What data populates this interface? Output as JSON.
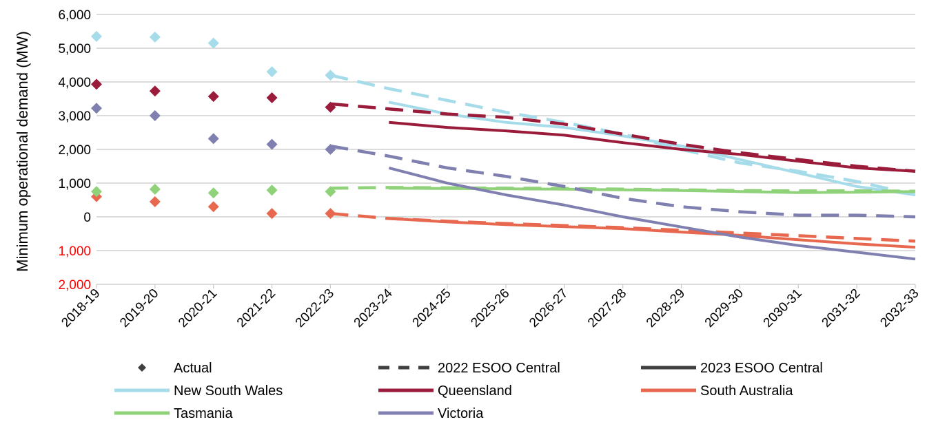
{
  "chart_data": {
    "type": "line",
    "ylabel": "Minimum operational demand (MW)",
    "ylim": [
      -2000,
      6000
    ],
    "y_ticks": [
      {
        "value": 6000,
        "label": "6,000",
        "color": "#000000"
      },
      {
        "value": 5000,
        "label": "5,000",
        "color": "#000000"
      },
      {
        "value": 4000,
        "label": "4,000",
        "color": "#000000"
      },
      {
        "value": 3000,
        "label": "3,000",
        "color": "#000000"
      },
      {
        "value": 2000,
        "label": "2,000",
        "color": "#000000"
      },
      {
        "value": 1000,
        "label": "1,000",
        "color": "#000000"
      },
      {
        "value": 0,
        "label": "0",
        "color": "#000000"
      },
      {
        "value": -1000,
        "label": "1,000",
        "color": "#ff0000"
      },
      {
        "value": -2000,
        "label": "2,000",
        "color": "#ff0000"
      }
    ],
    "categories": [
      "2018-19",
      "2019-20",
      "2020-21",
      "2021-22",
      "2022-23",
      "2023-24",
      "2024-25",
      "2025-26",
      "2026-27",
      "2027-28",
      "2028-29",
      "2029-30",
      "2030-31",
      "2031-32",
      "2032-33"
    ],
    "grid": true,
    "legend_position": "bottom",
    "legend": [
      {
        "label": "Actual",
        "style": "marker"
      },
      {
        "label": "2022 ESOO Central",
        "style": "dashed"
      },
      {
        "label": "2023 ESOO Central",
        "style": "solid"
      },
      {
        "label": "New South Wales",
        "style": "solid",
        "color": "#a6dcea"
      },
      {
        "label": "Queensland",
        "style": "solid",
        "color": "#9b1b3a"
      },
      {
        "label": "South Australia",
        "style": "solid",
        "color": "#e8684f"
      },
      {
        "label": "Tasmania",
        "style": "solid",
        "color": "#8fd27a"
      },
      {
        "label": "Victoria",
        "style": "solid",
        "color": "#7f7fb0"
      }
    ],
    "series": [
      {
        "name": "New South Wales",
        "color": "#a6dcea",
        "actual": [
          5350,
          5330,
          5150,
          4300,
          4200
        ],
        "esoo_2022": [
          null,
          null,
          null,
          null,
          4200,
          3800,
          3450,
          3100,
          2800,
          2450,
          2000,
          1600,
          1350,
          1050,
          650
        ],
        "esoo_2023": [
          null,
          null,
          null,
          null,
          null,
          3400,
          3050,
          2800,
          2650,
          2400,
          2100,
          1700,
          1300,
          900,
          650
        ]
      },
      {
        "name": "Queensland",
        "color": "#9b1b3a",
        "actual": [
          3930,
          3730,
          3570,
          3530,
          3250
        ],
        "esoo_2022": [
          null,
          null,
          null,
          null,
          3350,
          3200,
          3050,
          2950,
          2750,
          2450,
          2150,
          1900,
          1700,
          1500,
          1350
        ],
        "esoo_2023": [
          null,
          null,
          null,
          null,
          null,
          2800,
          2650,
          2550,
          2420,
          2200,
          2000,
          1850,
          1650,
          1450,
          1350
        ]
      },
      {
        "name": "South Australia",
        "color": "#e8684f",
        "actual": [
          600,
          450,
          300,
          100,
          100
        ],
        "esoo_2022": [
          null,
          null,
          null,
          null,
          100,
          -50,
          -130,
          -200,
          -260,
          -320,
          -400,
          -480,
          -560,
          -640,
          -720
        ],
        "esoo_2023": [
          null,
          null,
          null,
          null,
          null,
          -50,
          -150,
          -230,
          -290,
          -350,
          -450,
          -550,
          -680,
          -800,
          -900
        ]
      },
      {
        "name": "Tasmania",
        "color": "#8fd27a",
        "actual": [
          750,
          820,
          710,
          790,
          750
        ],
        "esoo_2022": [
          null,
          null,
          null,
          null,
          850,
          870,
          860,
          850,
          840,
          820,
          800,
          780,
          770,
          770,
          760
        ],
        "esoo_2023": [
          null,
          null,
          null,
          null,
          null,
          850,
          840,
          830,
          820,
          800,
          780,
          750,
          720,
          730,
          750
        ]
      },
      {
        "name": "Victoria",
        "color": "#7f7fb0",
        "actual": [
          3220,
          3000,
          2320,
          2150,
          2000
        ],
        "esoo_2022": [
          null,
          null,
          null,
          null,
          2100,
          1800,
          1450,
          1200,
          900,
          550,
          300,
          150,
          50,
          50,
          0
        ],
        "esoo_2023": [
          null,
          null,
          null,
          null,
          null,
          1450,
          1000,
          650,
          350,
          0,
          -300,
          -600,
          -850,
          -1050,
          -1250
        ]
      }
    ]
  }
}
